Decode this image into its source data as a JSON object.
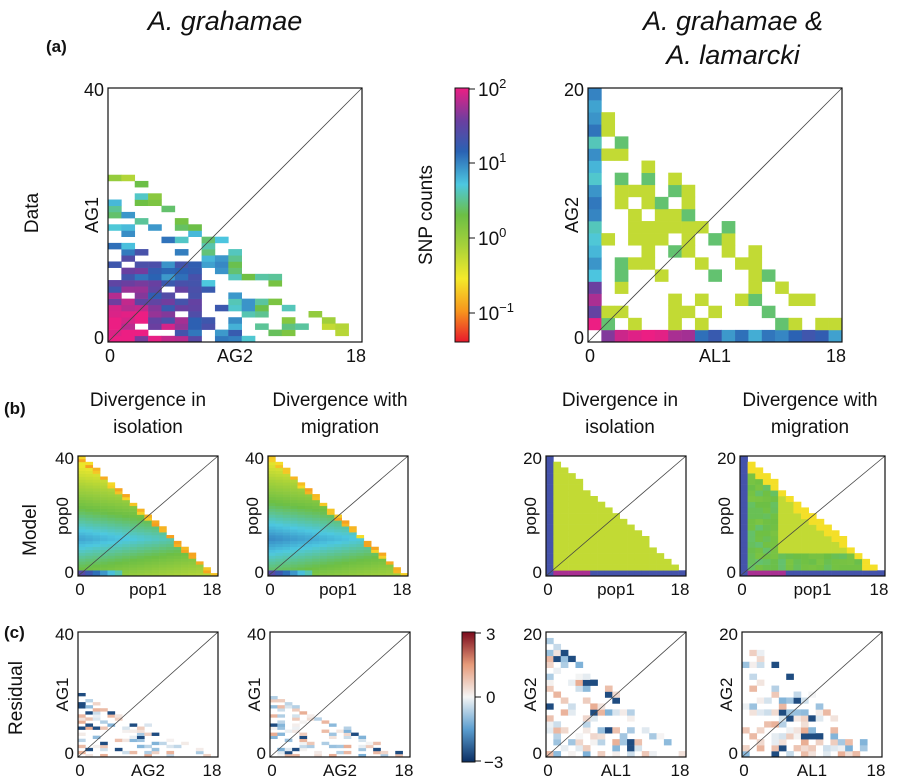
{
  "labels": {
    "title_left": "A. grahamae",
    "title_right_1": "A. grahamae &",
    "title_right_2": "A. lamarcki",
    "panel_a": "(a)",
    "panel_b": "(b)",
    "panel_c": "(c)",
    "row_data": "Data",
    "row_model": "Model",
    "row_residual": "Residual",
    "colorbar_label": "SNP counts",
    "cb_exp_2": "2",
    "cb_exp_1": "1",
    "cb_exp_0": "0",
    "cb_exp_m1": "−1",
    "cb_base": "10",
    "res_3": "3",
    "res_0": "0",
    "res_m3": "−3",
    "model_div_iso_1": "Divergence in",
    "model_div_iso_2": "isolation",
    "model_div_mig_1": "Divergence with",
    "model_div_mig_2": "migration"
  },
  "chart_data": [
    {
      "type": "heatmap",
      "panel": "a",
      "title": "A. grahamae",
      "xlabel": "AG2",
      "ylabel": "AG1",
      "x_ticks": [
        "0",
        "18"
      ],
      "y_ticks": [
        "0",
        "40"
      ],
      "xlim": [
        0,
        18
      ],
      "ylim": [
        0,
        40
      ],
      "color_scale": "log",
      "colorbar": {
        "label": "SNP counts",
        "range": [
          0.1,
          100
        ]
      }
    },
    {
      "type": "heatmap",
      "panel": "a",
      "title": "A. grahamae & A. lamarcki",
      "xlabel": "AL1",
      "ylabel": "AG2",
      "x_ticks": [
        "0",
        "18"
      ],
      "y_ticks": [
        "0",
        "20"
      ],
      "xlim": [
        0,
        18
      ],
      "ylim": [
        0,
        20
      ],
      "color_scale": "log"
    },
    {
      "type": "heatmap",
      "panel": "b",
      "title": "Divergence in isolation",
      "xlabel": "pop1",
      "ylabel": "pop0",
      "x_ticks": [
        "0",
        "18"
      ],
      "y_ticks": [
        "0",
        "40"
      ]
    },
    {
      "type": "heatmap",
      "panel": "b",
      "title": "Divergence with migration",
      "xlabel": "pop1",
      "ylabel": "pop0",
      "x_ticks": [
        "0",
        "18"
      ],
      "y_ticks": [
        "0",
        "40"
      ]
    },
    {
      "type": "heatmap",
      "panel": "b",
      "title": "Divergence in isolation",
      "xlabel": "pop1",
      "ylabel": "pop0",
      "x_ticks": [
        "0",
        "18"
      ],
      "y_ticks": [
        "0",
        "20"
      ]
    },
    {
      "type": "heatmap",
      "panel": "b",
      "title": "Divergence with migration",
      "xlabel": "pop1",
      "ylabel": "pop0",
      "x_ticks": [
        "0",
        "18"
      ],
      "y_ticks": [
        "0",
        "20"
      ]
    },
    {
      "type": "heatmap",
      "panel": "c",
      "xlabel": "AG2",
      "ylabel": "AG1",
      "x_ticks": [
        "0",
        "18"
      ],
      "y_ticks": [
        "0",
        "40"
      ],
      "colorbar": {
        "range": [
          -3,
          3
        ],
        "ticks": [
          "3",
          "0",
          "−3"
        ]
      }
    },
    {
      "type": "heatmap",
      "panel": "c",
      "xlabel": "AG2",
      "ylabel": "AG1",
      "x_ticks": [
        "0",
        "18"
      ],
      "y_ticks": [
        "0",
        "40"
      ]
    },
    {
      "type": "heatmap",
      "panel": "c",
      "xlabel": "AL1",
      "ylabel": "AG2",
      "x_ticks": [
        "0",
        "18"
      ],
      "y_ticks": [
        "0",
        "20"
      ]
    },
    {
      "type": "heatmap",
      "panel": "c",
      "xlabel": "AL1",
      "ylabel": "AG2",
      "x_ticks": [
        "0",
        "18"
      ],
      "y_ticks": [
        "0",
        "20"
      ]
    }
  ]
}
